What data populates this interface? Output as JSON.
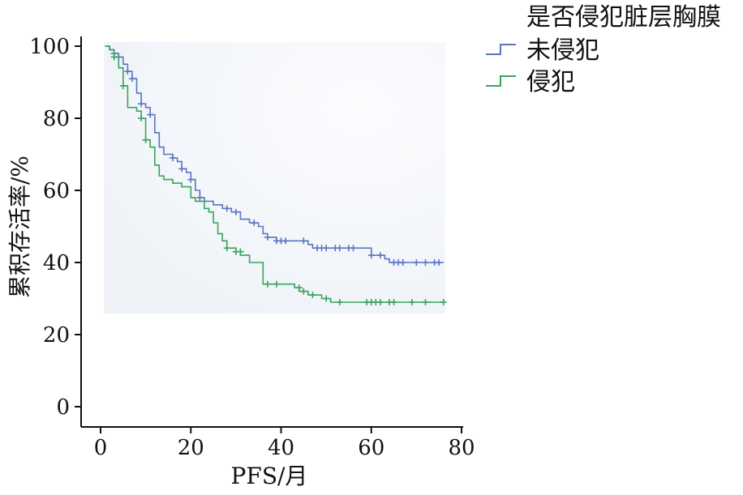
{
  "chart_data": {
    "type": "line",
    "subtype": "kaplan-meier-step",
    "title": "",
    "xlabel": "PFS/月",
    "ylabel": "累积存活率/%",
    "xlim": [
      0,
      80
    ],
    "ylim": [
      0,
      100
    ],
    "x_ticks": [
      "0",
      "20",
      "40",
      "60",
      "80"
    ],
    "y_ticks": [
      "0",
      "20",
      "40",
      "60",
      "80",
      "100"
    ],
    "legend_title": "是否侵犯脏层胸膜",
    "legend_position": "top-right",
    "series": [
      {
        "name": "未侵犯",
        "color": "#5b76c1",
        "steps": [
          [
            1,
            100
          ],
          [
            2,
            99
          ],
          [
            3,
            98
          ],
          [
            4,
            97
          ],
          [
            5,
            95
          ],
          [
            6,
            93
          ],
          [
            7,
            91
          ],
          [
            8,
            87
          ],
          [
            9,
            84
          ],
          [
            10,
            83
          ],
          [
            11,
            81
          ],
          [
            12,
            76
          ],
          [
            13,
            72
          ],
          [
            14,
            70
          ],
          [
            16,
            69
          ],
          [
            17,
            68
          ],
          [
            18,
            66
          ],
          [
            19,
            65
          ],
          [
            20,
            63
          ],
          [
            21,
            60
          ],
          [
            22,
            58
          ],
          [
            23,
            57
          ],
          [
            25,
            56
          ],
          [
            27,
            55
          ],
          [
            29,
            54
          ],
          [
            31,
            52
          ],
          [
            33,
            51
          ],
          [
            35,
            50
          ],
          [
            36,
            48
          ],
          [
            37,
            47
          ],
          [
            38,
            47
          ],
          [
            39,
            46
          ],
          [
            44,
            46
          ],
          [
            46,
            45
          ],
          [
            47,
            44
          ],
          [
            60,
            44
          ],
          [
            60,
            42
          ],
          [
            63,
            42
          ],
          [
            63,
            41
          ],
          [
            64,
            40
          ],
          [
            76,
            40
          ]
        ],
        "censors": [
          [
            3,
            98
          ],
          [
            4,
            97
          ],
          [
            6,
            93
          ],
          [
            7,
            91
          ],
          [
            9,
            84
          ],
          [
            11,
            81
          ],
          [
            16,
            69
          ],
          [
            18,
            66
          ],
          [
            20,
            63
          ],
          [
            22,
            58
          ],
          [
            28,
            55
          ],
          [
            30,
            54
          ],
          [
            34,
            51
          ],
          [
            37,
            47
          ],
          [
            39,
            46
          ],
          [
            40,
            46
          ],
          [
            41,
            46
          ],
          [
            45,
            46
          ],
          [
            48,
            44
          ],
          [
            49,
            44
          ],
          [
            50,
            44
          ],
          [
            52,
            44
          ],
          [
            53,
            44
          ],
          [
            55,
            44
          ],
          [
            56,
            44
          ],
          [
            60,
            42
          ],
          [
            62,
            42
          ],
          [
            65,
            40
          ],
          [
            66,
            40
          ],
          [
            67,
            40
          ],
          [
            70,
            40
          ],
          [
            72,
            40
          ],
          [
            74,
            40
          ],
          [
            75,
            40
          ]
        ]
      },
      {
        "name": "侵犯",
        "color": "#3aa35a",
        "steps": [
          [
            1,
            100
          ],
          [
            2,
            99
          ],
          [
            3,
            97
          ],
          [
            4,
            94
          ],
          [
            5,
            89
          ],
          [
            6,
            83
          ],
          [
            8,
            82
          ],
          [
            9,
            80
          ],
          [
            10,
            74
          ],
          [
            11,
            72
          ],
          [
            12,
            67
          ],
          [
            13,
            64
          ],
          [
            14,
            63
          ],
          [
            16,
            62
          ],
          [
            18,
            61
          ],
          [
            20,
            58
          ],
          [
            21,
            57
          ],
          [
            23,
            55
          ],
          [
            24,
            54
          ],
          [
            25,
            51
          ],
          [
            26,
            48
          ],
          [
            27,
            46
          ],
          [
            28,
            44
          ],
          [
            30,
            43
          ],
          [
            31,
            42
          ],
          [
            33,
            40
          ],
          [
            36,
            34
          ],
          [
            40,
            34
          ],
          [
            43,
            33
          ],
          [
            44,
            32
          ],
          [
            46,
            31
          ],
          [
            48,
            31
          ],
          [
            49,
            30
          ],
          [
            51,
            29
          ],
          [
            76,
            29
          ]
        ],
        "censors": [
          [
            3,
            97
          ],
          [
            5,
            89
          ],
          [
            9,
            80
          ],
          [
            10,
            74
          ],
          [
            28,
            44
          ],
          [
            30,
            43
          ],
          [
            31,
            43
          ],
          [
            37,
            34
          ],
          [
            39,
            34
          ],
          [
            44,
            33
          ],
          [
            45,
            32
          ],
          [
            47,
            31
          ],
          [
            50,
            30
          ],
          [
            53,
            29
          ],
          [
            59,
            29
          ],
          [
            60,
            29
          ],
          [
            61,
            29
          ],
          [
            62,
            29
          ],
          [
            64,
            29
          ],
          [
            65,
            29
          ],
          [
            69,
            29
          ],
          [
            72,
            29
          ],
          [
            76,
            29
          ]
        ]
      }
    ]
  }
}
